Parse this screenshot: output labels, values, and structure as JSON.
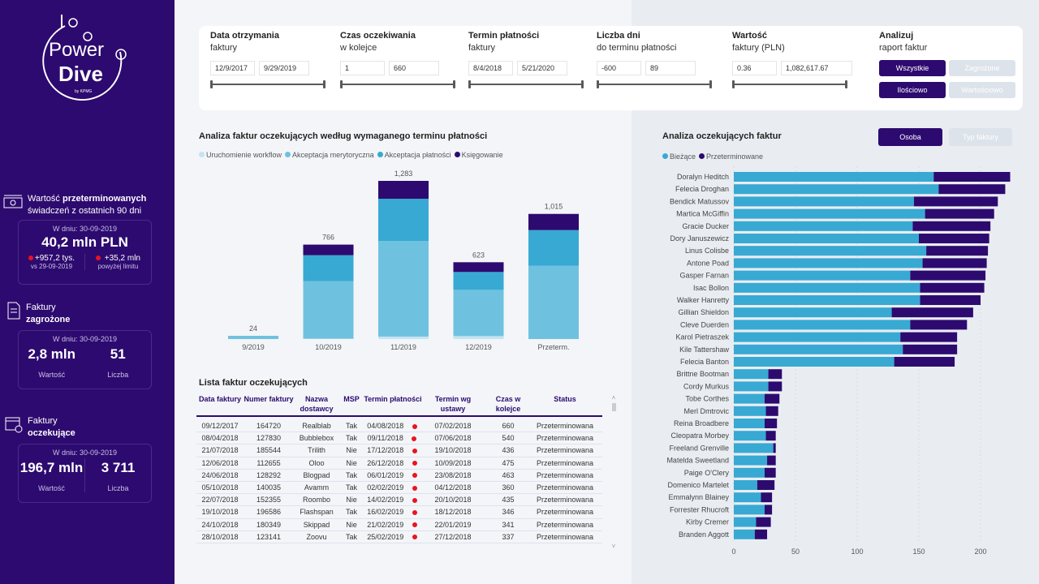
{
  "logo": {
    "line1": "Power",
    "line2": "Dive",
    "by": "by KPMG"
  },
  "kpi1": {
    "title_a": "Wartość ",
    "title_b": "przeterminowanych",
    "title_c": "świadczeń z ostatnich 90 dni",
    "date": "W dniu: 30-09-2019",
    "value": "40,2 mln PLN",
    "delta1": "+957,2 tys.",
    "delta1_label": "vs 29-09-2019",
    "delta2": "+35,2 mln",
    "delta2_label": "powyżej limitu"
  },
  "kpi2": {
    "title_a": "Faktury",
    "title_b": "zagrożone",
    "date": "W dniu: 30-09-2019",
    "value": "2,8 mln",
    "value_label": "Wartość",
    "count": "51",
    "count_label": "Liczba"
  },
  "kpi3": {
    "title_a": "Faktury",
    "title_b": "oczekujące",
    "date": "W dniu: 30-09-2019",
    "value": "196,7 mln",
    "value_label": "Wartość",
    "count": "3 711",
    "count_label": "Liczba"
  },
  "filters": [
    {
      "title": "Data otrzymania",
      "sub": "faktury",
      "from": "12/9/2017",
      "to": "9/29/2019"
    },
    {
      "title": "Czas oczekiwania",
      "sub": "w kolejce",
      "from": "1",
      "to": "660"
    },
    {
      "title": "Termin płatności",
      "sub": "faktury",
      "from": "8/4/2018",
      "to": "5/21/2020"
    },
    {
      "title": "Liczba dni",
      "sub": "do terminu płatności",
      "from": "-600",
      "to": "89"
    },
    {
      "title": "Wartość",
      "sub": "faktury (PLN)",
      "from": "0.36",
      "to": "1,082,617.67"
    }
  ],
  "analyze": {
    "title": "Analizuj",
    "sub": "raport faktur",
    "b1": "Wszystkie",
    "b2": "Zagrożone",
    "b3": "Ilościowo",
    "b4": "Wartościowo"
  },
  "colors": {
    "workflow": "#c4e4f1",
    "merytoryczna": "#6fc2df",
    "platnosci": "#38a9d3",
    "ksiegowanie": "#2d0a6f",
    "biezace": "#38a9d3",
    "przeterminowane": "#2d0a6f"
  },
  "chart_data": [
    {
      "type": "bar",
      "stacked": true,
      "title": "Analiza faktur oczekujących według wymaganego terminu płatności",
      "categories": [
        "9/2019",
        "10/2019",
        "11/2019",
        "12/2019",
        "Przeterm."
      ],
      "totals": [
        "24",
        "766",
        "1,283",
        "623",
        "1,015"
      ],
      "series": [
        {
          "name": "Uruchomienie workflow",
          "values": [
            0,
            3,
            20,
            24,
            0
          ]
        },
        {
          "name": "Akceptacja merytoryczna",
          "values": [
            24,
            467,
            776,
            375,
            594
          ]
        },
        {
          "name": "Akceptacja płatności",
          "values": [
            0,
            210,
            342,
            145,
            290
          ]
        },
        {
          "name": "Księgowanie",
          "values": [
            0,
            86,
            145,
            79,
            131
          ]
        }
      ],
      "ylim": [
        0,
        1300
      ],
      "legend": "top-left"
    },
    {
      "type": "bar",
      "orientation": "horizontal",
      "stacked": true,
      "title": "Analiza oczekujących faktur",
      "toggle": {
        "b1": "Osoba",
        "b2": "Typ faktury"
      },
      "categories": [
        "Doralyn Heditch",
        "Felecia Droghan",
        "Bendick Matussov",
        "Martica McGiffin",
        "Gracie Ducker",
        "Dory Januszewicz",
        "Linus Colisbe",
        "Antone Poad",
        "Gasper Farnan",
        "Isac Bollon",
        "Walker Hanretty",
        "Gillian Shieldon",
        "Cleve Duerden",
        "Karol Pietraszek",
        "Kile Tattershaw",
        "Felecia Banton",
        "Brittne Bootman",
        "Cordy Murkus",
        "Tobe Corthes",
        "Merl Dmtrovic",
        "Reina Broadbere",
        "Cleopatra Morbey",
        "Freeland Grenville",
        "Matelda Sweetland",
        "Paige O'Clery",
        "Domenico Martelet",
        "Emmalynn Blainey",
        "Forrester Rhucroft",
        "Kirby Cremer",
        "Branden Aggott"
      ],
      "series": [
        {
          "name": "Bieżące",
          "values": [
            162,
            166,
            146,
            155,
            145,
            150,
            156,
            153,
            143,
            151,
            151,
            128,
            143,
            135,
            137,
            130,
            28,
            28,
            25,
            26,
            25,
            26,
            32,
            27,
            25,
            19,
            22,
            25,
            18,
            17
          ]
        },
        {
          "name": "Przeterminowane",
          "values": [
            62,
            54,
            68,
            56,
            63,
            57,
            50,
            52,
            61,
            52,
            49,
            66,
            46,
            46,
            44,
            49,
            11,
            11,
            12,
            10,
            10,
            8,
            2,
            7,
            9,
            14,
            9,
            6,
            12,
            10
          ]
        }
      ],
      "xticks": [
        "0",
        "50",
        "100",
        "150",
        "200"
      ],
      "xlim": [
        0,
        230
      ],
      "legend": "top-left"
    }
  ],
  "table": {
    "title": "Lista faktur oczekujących",
    "headers": [
      "Data faktury",
      "Numer faktury",
      "Nazwa dostawcy",
      "MSP",
      "Termin płatności",
      "Termin wg ustawy",
      "Czas w kolejce",
      "Status"
    ],
    "rows": [
      [
        "09/12/2017",
        "164720",
        "Realblab",
        "Tak",
        "04/08/2018",
        "07/02/2018",
        "660",
        "Przeterminowana"
      ],
      [
        "08/04/2018",
        "127830",
        "Bubblebox",
        "Tak",
        "09/11/2018",
        "07/06/2018",
        "540",
        "Przeterminowana"
      ],
      [
        "21/07/2018",
        "185544",
        "Trilith",
        "Nie",
        "17/12/2018",
        "19/10/2018",
        "436",
        "Przeterminowana"
      ],
      [
        "12/06/2018",
        "112655",
        "Oloo",
        "Nie",
        "26/12/2018",
        "10/09/2018",
        "475",
        "Przeterminowana"
      ],
      [
        "24/06/2018",
        "128292",
        "Blogpad",
        "Tak",
        "06/01/2019",
        "23/08/2018",
        "463",
        "Przeterminowana"
      ],
      [
        "05/10/2018",
        "140035",
        "Avamm",
        "Tak",
        "02/02/2019",
        "04/12/2018",
        "360",
        "Przeterminowana"
      ],
      [
        "22/07/2018",
        "152355",
        "Roombo",
        "Nie",
        "14/02/2019",
        "20/10/2018",
        "435",
        "Przeterminowana"
      ],
      [
        "19/10/2018",
        "196586",
        "Flashspan",
        "Tak",
        "16/02/2019",
        "18/12/2018",
        "346",
        "Przeterminowana"
      ],
      [
        "24/10/2018",
        "180349",
        "Skippad",
        "Nie",
        "21/02/2019",
        "22/01/2019",
        "341",
        "Przeterminowana"
      ],
      [
        "28/10/2018",
        "123141",
        "Zoovu",
        "Tak",
        "25/02/2019",
        "27/12/2018",
        "337",
        "Przeterminowana"
      ]
    ]
  }
}
